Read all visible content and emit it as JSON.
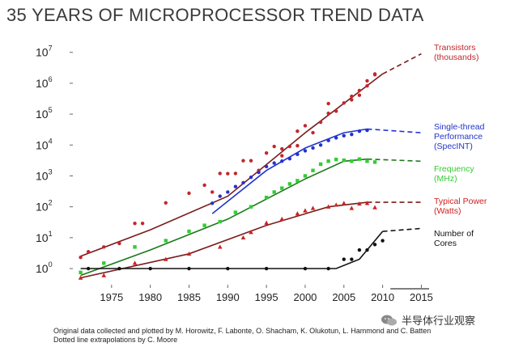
{
  "title": "35 YEARS OF MICROPROCESSOR TREND DATA",
  "footer": {
    "line1": "Original data collected and plotted by M. Horowitz, F. Labonte, O. Shacham, K. Olukotun, L. Hammond and C. Batten",
    "line2": "Dotted line extrapolations by C. Moore"
  },
  "watermark": "半导体行业观察",
  "chart_data": {
    "type": "scatter",
    "yscale": "log",
    "xlim": [
      1970,
      2016
    ],
    "ylim": [
      0.3,
      15000000
    ],
    "xticks": [
      1975,
      1980,
      1985,
      1990,
      1995,
      2000,
      2005,
      2010,
      2015
    ],
    "yticks": [
      {
        "value": 1,
        "base": "10",
        "exp": "0"
      },
      {
        "value": 10,
        "base": "10",
        "exp": "1"
      },
      {
        "value": 100,
        "base": "10",
        "exp": "2"
      },
      {
        "value": 1000,
        "base": "10",
        "exp": "3"
      },
      {
        "value": 10000,
        "base": "10",
        "exp": "4"
      },
      {
        "value": 100000,
        "base": "10",
        "exp": "5"
      },
      {
        "value": 1000000,
        "base": "10",
        "exp": "6"
      },
      {
        "value": 10000000,
        "base": "10",
        "exp": "7"
      }
    ],
    "grid": false,
    "legend_position": "right",
    "series": [
      {
        "name": "Transistors (thousands)",
        "label_lines": [
          "Transistors",
          "(thousands)"
        ],
        "color": "#c0282d",
        "line_color": "#7a1c1c",
        "marker": "circle",
        "points": [
          [
            1971,
            2.3
          ],
          [
            1972,
            3.5
          ],
          [
            1974,
            5
          ],
          [
            1976,
            6.5
          ],
          [
            1978,
            29
          ],
          [
            1979,
            29
          ],
          [
            1982,
            134
          ],
          [
            1985,
            275
          ],
          [
            1987,
            500
          ],
          [
            1988,
            300
          ],
          [
            1989,
            1200
          ],
          [
            1990,
            1180
          ],
          [
            1991,
            1200
          ],
          [
            1992,
            3100
          ],
          [
            1993,
            3100
          ],
          [
            1994,
            1500
          ],
          [
            1995,
            5500
          ],
          [
            1996,
            9000
          ],
          [
            1997,
            7500
          ],
          [
            1997,
            4500
          ],
          [
            1998,
            9000
          ],
          [
            1999,
            28000
          ],
          [
            1999,
            9500
          ],
          [
            2000,
            42000
          ],
          [
            2001,
            25000
          ],
          [
            2002,
            55000
          ],
          [
            2003,
            106000
          ],
          [
            2003,
            220000
          ],
          [
            2004,
            125000
          ],
          [
            2005,
            230000
          ],
          [
            2006,
            291000
          ],
          [
            2006,
            376000
          ],
          [
            2007,
            410000
          ],
          [
            2007,
            580000
          ],
          [
            2008,
            820000
          ],
          [
            2008,
            1200000
          ],
          [
            2009,
            2000000
          ],
          [
            2009,
            1900000
          ]
        ],
        "trend": [
          [
            1971,
            2.5
          ],
          [
            1980,
            18
          ],
          [
            1990,
            220
          ],
          [
            2000,
            25000
          ],
          [
            2010,
            2000000
          ]
        ],
        "extrapolation": [
          [
            2010,
            2000000
          ],
          [
            2015,
            9000000
          ]
        ]
      },
      {
        "name": "Single-thread Performance (SpecINT)",
        "label_lines": [
          "Single-thread",
          "Performance",
          "(SpecINT)"
        ],
        "color": "#2233cc",
        "line_color": "#2233cc",
        "marker": "circle",
        "points": [
          [
            1988,
            130
          ],
          [
            1989,
            220
          ],
          [
            1990,
            300
          ],
          [
            1991,
            450
          ],
          [
            1992,
            600
          ],
          [
            1993,
            900
          ],
          [
            1994,
            1300
          ],
          [
            1995,
            2000
          ],
          [
            1996,
            2600
          ],
          [
            1997,
            3000
          ],
          [
            1998,
            3600
          ],
          [
            1999,
            5000
          ],
          [
            2000,
            6500
          ],
          [
            2001,
            8000
          ],
          [
            2002,
            10000
          ],
          [
            2003,
            14000
          ],
          [
            2004,
            17000
          ],
          [
            2005,
            20000
          ],
          [
            2006,
            22000
          ],
          [
            2007,
            28000
          ],
          [
            2008,
            30000
          ]
        ],
        "trend": [
          [
            1988,
            60
          ],
          [
            1995,
            1500
          ],
          [
            2000,
            8000
          ],
          [
            2005,
            25000
          ],
          [
            2008,
            33000
          ]
        ],
        "extrapolation": [
          [
            2008,
            33000
          ],
          [
            2015,
            25000
          ]
        ]
      },
      {
        "name": "Frequency (MHz)",
        "label_lines": [
          "Frequency",
          "(MHz)"
        ],
        "color": "#33cc33",
        "line_color": "#1a7a1a",
        "marker": "square",
        "points": [
          [
            1971,
            0.75
          ],
          [
            1974,
            1.5
          ],
          [
            1978,
            5
          ],
          [
            1982,
            8
          ],
          [
            1985,
            16
          ],
          [
            1987,
            25
          ],
          [
            1989,
            33
          ],
          [
            1991,
            66
          ],
          [
            1993,
            100
          ],
          [
            1995,
            200
          ],
          [
            1996,
            300
          ],
          [
            1997,
            400
          ],
          [
            1998,
            550
          ],
          [
            1999,
            700
          ],
          [
            2000,
            1000
          ],
          [
            2001,
            1500
          ],
          [
            2002,
            2400
          ],
          [
            2003,
            3000
          ],
          [
            2004,
            3400
          ],
          [
            2005,
            3200
          ],
          [
            2006,
            3000
          ],
          [
            2007,
            3500
          ],
          [
            2008,
            3000
          ],
          [
            2009,
            2800
          ]
        ],
        "trend": [
          [
            1971,
            0.6
          ],
          [
            1980,
            4
          ],
          [
            1990,
            40
          ],
          [
            2000,
            800
          ],
          [
            2005,
            3000
          ],
          [
            2008,
            3500
          ]
        ],
        "extrapolation": [
          [
            2008,
            3500
          ],
          [
            2015,
            3000
          ]
        ]
      },
      {
        "name": "Typical Power (Watts)",
        "label_lines": [
          "Typical Power",
          "(Watts)"
        ],
        "color": "#cc2222",
        "line_color": "#7a1c1c",
        "marker": "triangle",
        "points": [
          [
            1971,
            0.5
          ],
          [
            1974,
            0.6
          ],
          [
            1978,
            1.5
          ],
          [
            1982,
            2
          ],
          [
            1985,
            3
          ],
          [
            1989,
            5
          ],
          [
            1992,
            10
          ],
          [
            1993,
            15
          ],
          [
            1995,
            30
          ],
          [
            1997,
            40
          ],
          [
            1999,
            60
          ],
          [
            2000,
            75
          ],
          [
            2001,
            90
          ],
          [
            2003,
            100
          ],
          [
            2004,
            115
          ],
          [
            2005,
            130
          ],
          [
            2006,
            90
          ],
          [
            2007,
            125
          ],
          [
            2008,
            130
          ],
          [
            2009,
            95
          ]
        ],
        "trend": [
          [
            1971,
            0.5
          ],
          [
            1985,
            3
          ],
          [
            1995,
            25
          ],
          [
            2003,
            100
          ],
          [
            2008,
            140
          ]
        ],
        "extrapolation": [
          [
            2008,
            140
          ],
          [
            2015,
            140
          ]
        ]
      },
      {
        "name": "Number of Cores",
        "label_lines": [
          "Number of",
          "Cores"
        ],
        "color": "#111111",
        "line_color": "#111111",
        "marker": "circle",
        "points": [
          [
            1972,
            1
          ],
          [
            1976,
            1
          ],
          [
            1980,
            1
          ],
          [
            1985,
            1
          ],
          [
            1990,
            1
          ],
          [
            1995,
            1
          ],
          [
            2000,
            1
          ],
          [
            2003,
            1
          ],
          [
            2005,
            2
          ],
          [
            2006,
            2
          ],
          [
            2007,
            4
          ],
          [
            2008,
            4
          ],
          [
            2009,
            6
          ],
          [
            2010,
            8
          ]
        ],
        "trend": [
          [
            1971,
            1
          ],
          [
            2004,
            1
          ],
          [
            2007,
            2
          ],
          [
            2010,
            16
          ]
        ],
        "extrapolation": [
          [
            2010,
            16
          ],
          [
            2015,
            20
          ]
        ]
      }
    ]
  }
}
